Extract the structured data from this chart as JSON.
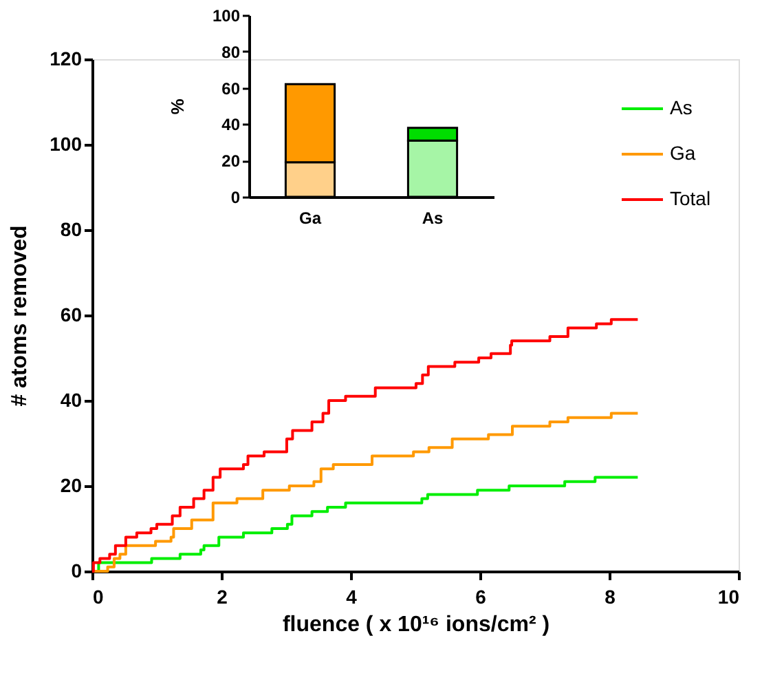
{
  "chart_data": [
    {
      "type": "step",
      "xlabel": "fluence  ( x 10¹⁶ ions/cm² )",
      "ylabel": "# atoms removed",
      "xlim": [
        0,
        10
      ],
      "xticks": [
        0,
        2,
        4,
        6,
        8,
        10
      ],
      "ylim": [
        0,
        120
      ],
      "yticks": [
        0,
        20,
        40,
        60,
        80,
        100,
        120
      ],
      "legend": "top right",
      "grid": false,
      "series": [
        {
          "name": "As",
          "color": "#00ee00",
          "x": [
            0,
            0.1,
            0.92,
            1.36,
            1.68,
            1.73,
            1.96,
            2.34,
            2.78,
            3.02,
            3.09,
            3.4,
            3.64,
            3.92,
            5.1,
            5.19,
            5.96,
            6.45,
            7.31,
            7.78,
            8.44
          ],
          "values": [
            0,
            2,
            3,
            4,
            5,
            6,
            8,
            9,
            10,
            11,
            13,
            14,
            15,
            16,
            17,
            18,
            19,
            20,
            21,
            22,
            22
          ]
        },
        {
          "name": "Ga",
          "color": "#ff9900",
          "x": [
            0,
            0.24,
            0.34,
            0.43,
            0.52,
            0.98,
            1.22,
            1.26,
            1.54,
            1.87,
            2.24,
            2.64,
            3.05,
            3.43,
            3.54,
            3.73,
            4.33,
            4.97,
            5.21,
            5.57,
            6.13,
            6.5,
            7.08,
            7.36,
            8.03,
            8.44
          ],
          "values": [
            0,
            1,
            3,
            4,
            6,
            7,
            8,
            10,
            12,
            16,
            17,
            19,
            20,
            21,
            24,
            25,
            27,
            28,
            29,
            31,
            32,
            34,
            35,
            36,
            37,
            37
          ]
        },
        {
          "name": "Total",
          "color": "#ff0000",
          "x": [
            0,
            0.02,
            0.12,
            0.27,
            0.36,
            0.52,
            0.69,
            0.91,
            1.0,
            1.24,
            1.36,
            1.57,
            1.73,
            1.87,
            1.98,
            2.34,
            2.41,
            2.66,
            3.01,
            3.1,
            3.4,
            3.57,
            3.66,
            3.92,
            4.38,
            5.01,
            5.11,
            5.2,
            5.61,
            5.98,
            6.17,
            6.47,
            6.49,
            7.08,
            7.36,
            7.8,
            8.03,
            8.44
          ],
          "values": [
            0,
            2,
            3,
            4,
            6,
            8,
            9,
            10,
            11,
            13,
            15,
            17,
            19,
            22,
            24,
            25,
            27,
            28,
            31,
            33,
            35,
            37,
            40,
            41,
            43,
            44,
            46,
            48,
            49,
            50,
            51,
            53,
            54,
            55,
            57,
            58,
            59,
            59
          ]
        }
      ]
    },
    {
      "type": "bar",
      "stacked": true,
      "ylabel": "%",
      "categories": [
        "Ga",
        "As"
      ],
      "ylim": [
        0,
        100
      ],
      "yticks": [
        0,
        20,
        40,
        60,
        80,
        100
      ],
      "grid": false,
      "series": [
        {
          "colors": [
            "#ffd08a",
            "#a6f5a6"
          ],
          "values": [
            19,
            31
          ]
        },
        {
          "colors": [
            "#ff9900",
            "#00dd00"
          ],
          "values": [
            43,
            7
          ]
        }
      ]
    }
  ]
}
